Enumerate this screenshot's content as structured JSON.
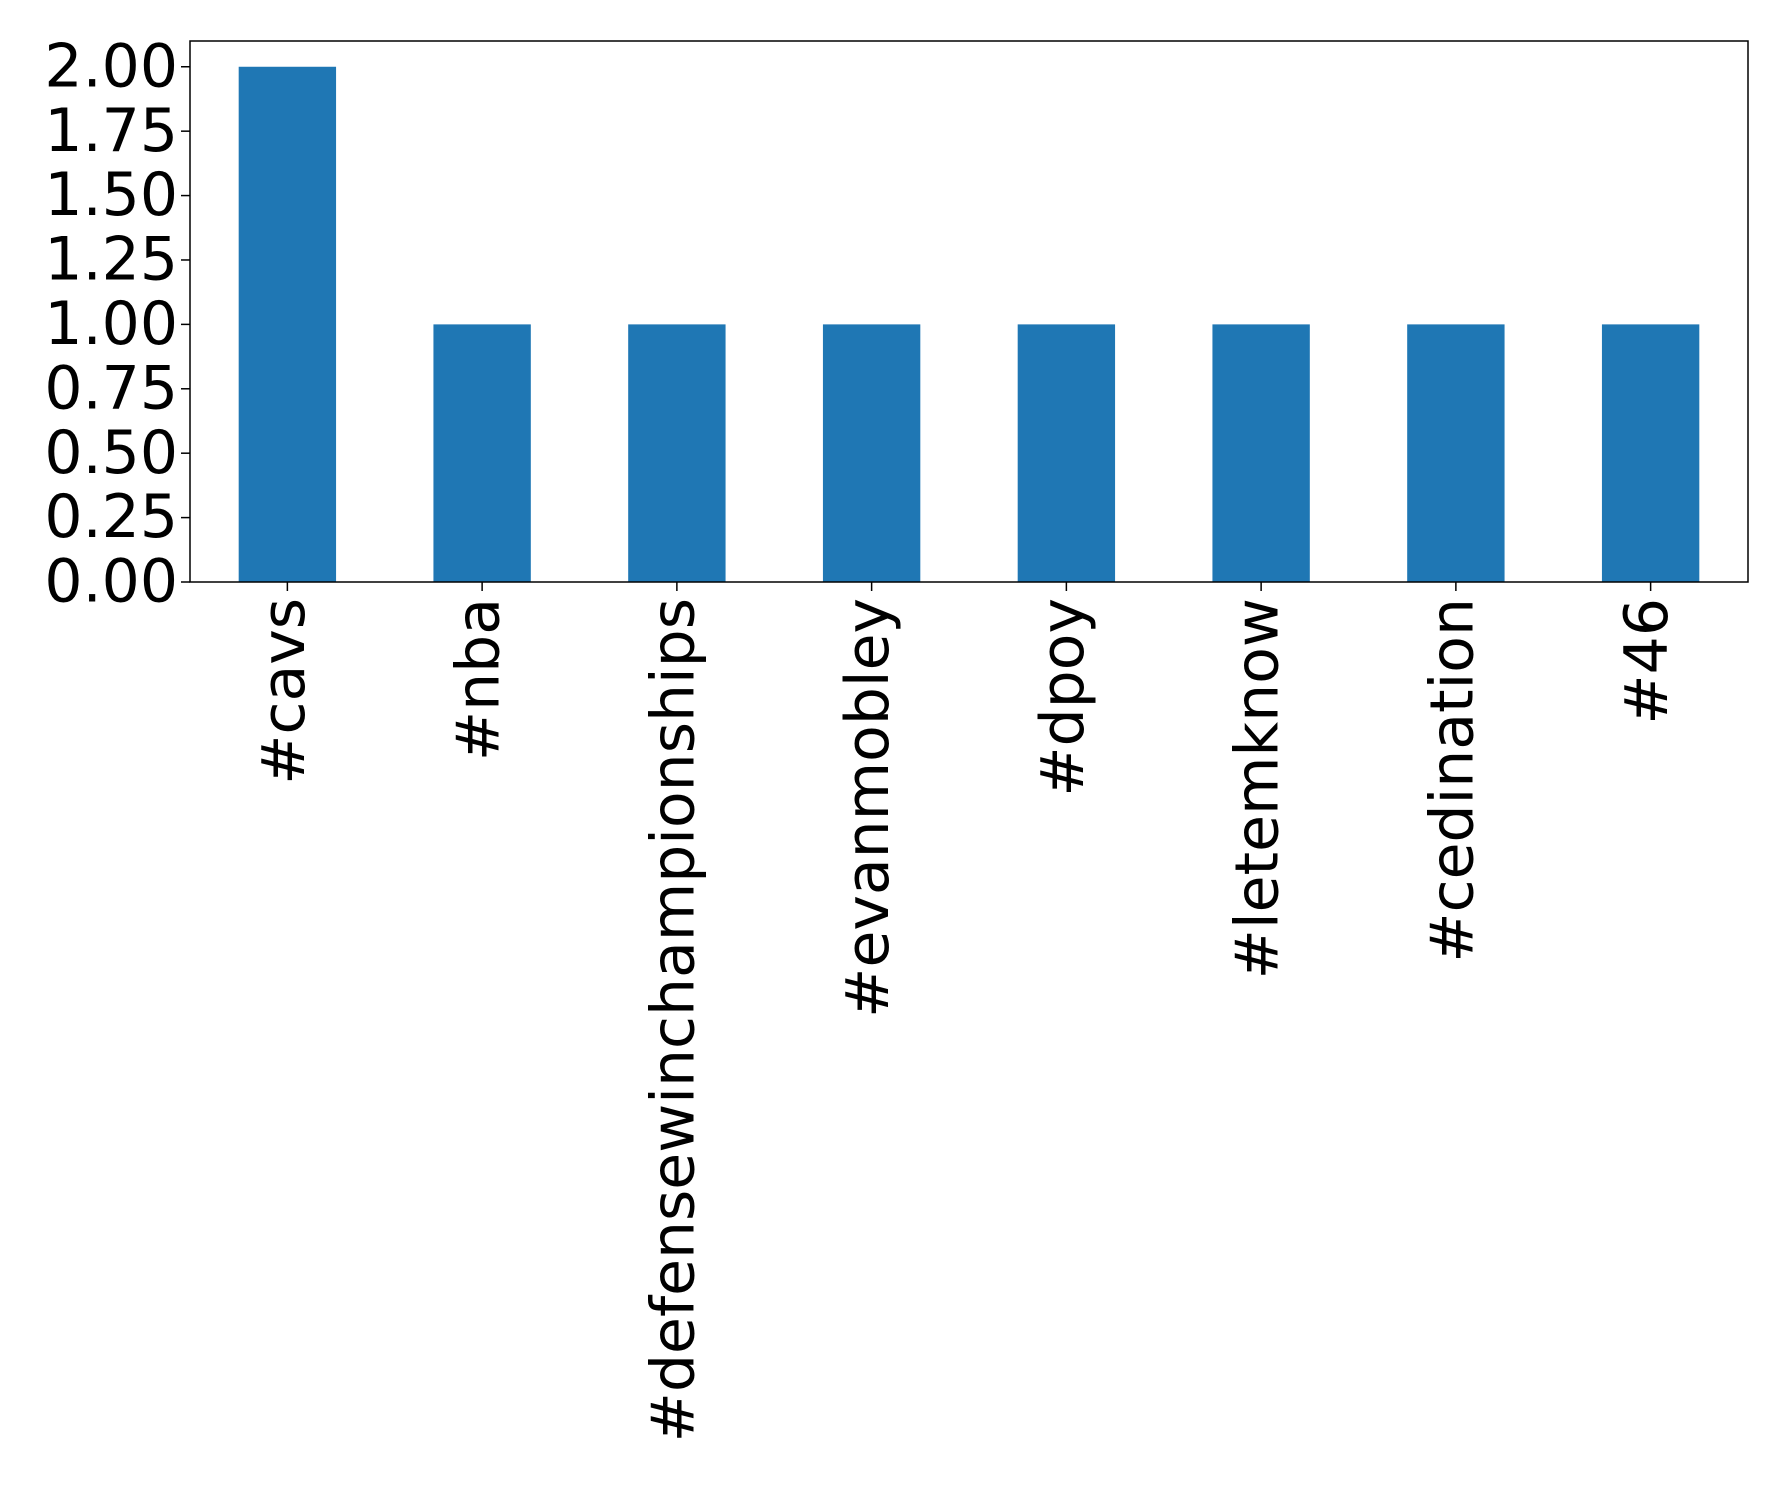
{
  "chart_data": {
    "type": "bar",
    "categories": [
      "#cavs",
      "#nba",
      "#defensewinchampionships",
      "#evanmobley",
      "#dpoy",
      "#letemknow",
      "#cedination",
      "#46"
    ],
    "values": [
      2,
      1,
      1,
      1,
      1,
      1,
      1,
      1
    ],
    "color": "#1f77b4",
    "ylim": [
      0,
      2.1
    ],
    "yticks": [
      {
        "value": 0,
        "label": "0.00"
      },
      {
        "value": 0.25,
        "label": "0.25"
      },
      {
        "value": 0.5,
        "label": "0.50"
      },
      {
        "value": 0.75,
        "label": "0.75"
      },
      {
        "value": 1,
        "label": "1.00"
      },
      {
        "value": 1.25,
        "label": "1.25"
      },
      {
        "value": 1.5,
        "label": "1.50"
      },
      {
        "value": 1.75,
        "label": "1.75"
      },
      {
        "value": 2,
        "label": "2.00"
      }
    ],
    "grid": false
  }
}
